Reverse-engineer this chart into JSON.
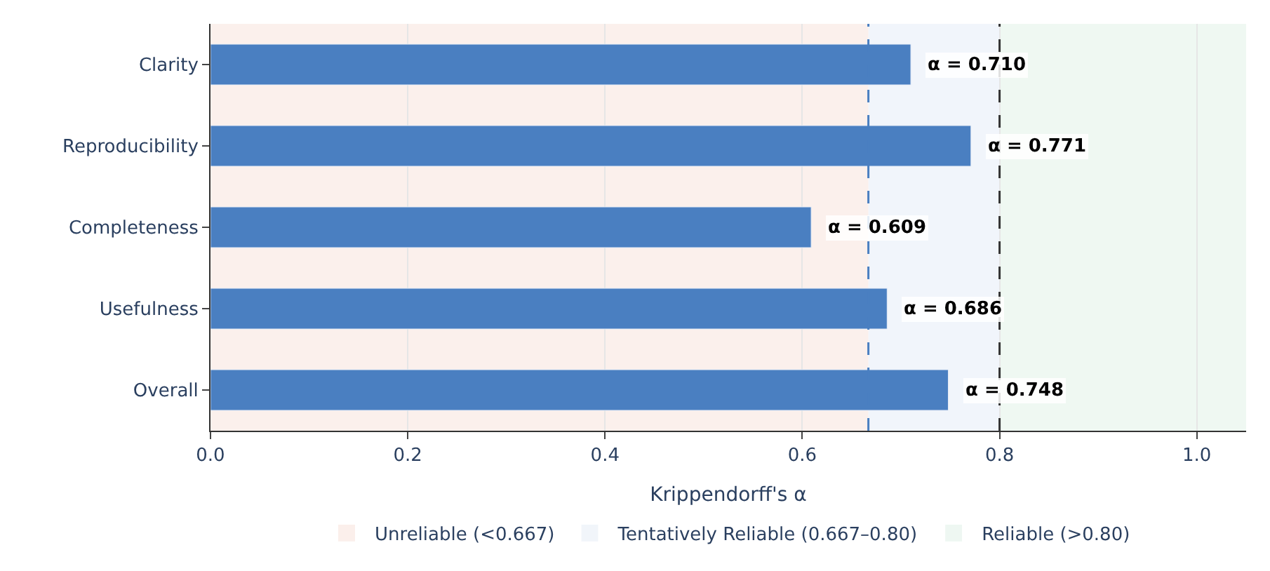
{
  "chart_data": {
    "type": "bar",
    "orientation": "horizontal",
    "xlabel": "Krippendorff's α",
    "categories": [
      "Clarity",
      "Reproducibility",
      "Completeness",
      "Usefulness",
      "Overall"
    ],
    "values": [
      0.71,
      0.771,
      0.609,
      0.686,
      0.748
    ],
    "color": "#4a7fc1",
    "value_labels": [
      "α = 0.710",
      "α = 0.771",
      "α = 0.609",
      "α = 0.686",
      "α = 0.748"
    ],
    "xlim": [
      0,
      1.05
    ],
    "xticks": [
      {
        "value": 0,
        "label": "0.0"
      },
      {
        "value": 0.2,
        "label": "0.2"
      },
      {
        "value": 0.4,
        "label": "0.4"
      },
      {
        "value": 0.6,
        "label": "0.6"
      },
      {
        "value": 0.8,
        "label": "0.8"
      },
      {
        "value": 1.0,
        "label": "1.0"
      }
    ],
    "bands": [
      {
        "axis": "x",
        "from": 0,
        "to": 0.667,
        "label": "Unreliable (<0.667)",
        "color": "#f4d4c8"
      },
      {
        "axis": "x",
        "from": 0.667,
        "to": 0.8,
        "label": "Tentatively Reliable (0.667–0.80)",
        "color": "#d8e3f3"
      },
      {
        "axis": "x",
        "from": 0.8,
        "to": 1.05,
        "label": "Reliable (>0.80)",
        "color": "#d0eadb"
      }
    ],
    "ref_lines": [
      {
        "axis": "x",
        "value": 0.667,
        "color": "#4a7fc1",
        "line_style": "dashed"
      },
      {
        "axis": "x",
        "value": 0.8,
        "color": "#333333",
        "line_style": "dashed"
      }
    ],
    "grid": "x",
    "legend": "bottom"
  }
}
